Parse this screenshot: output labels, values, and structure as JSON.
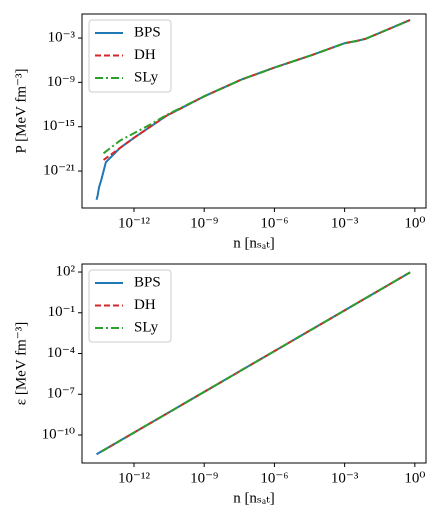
{
  "chart_data": [
    {
      "type": "line",
      "xlabel": "n [nₛₐₜ]",
      "ylabel": "P [MeV fm⁻³]",
      "xscale": "log",
      "yscale": "log",
      "legend": "upper left",
      "xlim": [
        6e-15,
        3
      ],
      "ylim": [
        1e-26,
        1.8
      ],
      "xticks": [
        {
          "value": 1e-12,
          "label": "10⁻¹²"
        },
        {
          "value": 1e-09,
          "label": "10⁻⁹"
        },
        {
          "value": 1e-06,
          "label": "10⁻⁶"
        },
        {
          "value": 0.001,
          "label": "10⁻³"
        },
        {
          "value": 1,
          "label": "10⁰"
        }
      ],
      "yticks": [
        {
          "value": 1e-21,
          "label": "10⁻²¹"
        },
        {
          "value": 1e-15,
          "label": "10⁻¹⁵"
        },
        {
          "value": 1e-09,
          "label": "10⁻⁹"
        },
        {
          "value": 0.001,
          "label": "10⁻³"
        }
      ],
      "series": [
        {
          "name": "BPS",
          "color": "#1f77b4",
          "linestyle": "solid",
          "x": [
            2.5e-14,
            2.8e-14,
            3.2e-14,
            4e-14,
            6.3e-14,
            2.5e-13,
            1e-12,
            2.5e-11,
            1e-09,
            4e-08,
            1e-06,
            4e-05,
            0.001,
            0.0032,
            0.0079,
            0.089,
            0.63
          ],
          "values": [
            1.3e-25,
            5e-25,
            6.3e-24,
            6.3e-23,
            1.6e-20,
            1.3e-18,
            3.2e-17,
            3.2e-14,
            1.3e-11,
            2.5e-09,
            1e-07,
            5e-06,
            0.0002,
            0.0004,
            0.00079,
            0.02,
            0.28
          ]
        },
        {
          "name": "DH",
          "color": "#d62728",
          "linestyle": "dashed",
          "x": [
            5e-14,
            2.5e-13,
            1e-12,
            2.5e-11,
            1e-09,
            4e-08,
            1e-06,
            4e-05,
            0.001,
            0.0032,
            0.0079,
            0.089,
            0.63
          ],
          "values": [
            3.2e-20,
            1.3e-18,
            3.2e-17,
            3.2e-14,
            1.3e-11,
            2.5e-09,
            1e-07,
            5e-06,
            0.0002,
            0.0004,
            0.00079,
            0.02,
            0.28
          ]
        },
        {
          "name": "SLy",
          "color": "#2ca02c",
          "linestyle": "dashdot",
          "x": [
            5e-14,
            2.5e-13,
            5e-12,
            2.5e-11,
            1e-09,
            4e-08,
            1e-06,
            4e-05,
            0.001,
            0.0032,
            0.0079,
            0.089,
            0.63
          ],
          "values": [
            2.5e-19,
            1.3e-17,
            2e-15,
            4e-14,
            1.3e-11,
            2.5e-09,
            1e-07,
            5e-06,
            0.0002,
            0.0004,
            0.00079,
            0.02,
            0.28
          ]
        }
      ]
    },
    {
      "type": "line",
      "xlabel": "n [nₛₐₜ]",
      "ylabel": "ε [MeV fm⁻³]",
      "xscale": "log",
      "yscale": "log",
      "legend": "upper left",
      "xlim": [
        6e-15,
        3
      ],
      "ylim": [
        8.7e-13,
        390
      ],
      "xticks": [
        {
          "value": 1e-12,
          "label": "10⁻¹²"
        },
        {
          "value": 1e-09,
          "label": "10⁻⁹"
        },
        {
          "value": 1e-06,
          "label": "10⁻⁶"
        },
        {
          "value": 0.001,
          "label": "10⁻³"
        },
        {
          "value": 1,
          "label": "10⁰"
        }
      ],
      "yticks": [
        {
          "value": 1e-10,
          "label": "10⁻¹⁰"
        },
        {
          "value": 1e-07,
          "label": "10⁻⁷"
        },
        {
          "value": 0.0001,
          "label": "10⁻⁴"
        },
        {
          "value": 0.1,
          "label": "10⁻¹"
        },
        {
          "value": 100,
          "label": "10²"
        }
      ],
      "series": [
        {
          "name": "BPS",
          "color": "#1f77b4",
          "linestyle": "solid",
          "x": [
            2.5e-14,
            1e-12,
            1e-09,
            1e-06,
            0.001,
            0.63
          ],
          "values": [
            3.8e-12,
            1.5e-10,
            1.5e-07,
            0.00015,
            0.15,
            95
          ]
        },
        {
          "name": "DH",
          "color": "#d62728",
          "linestyle": "dashed",
          "x": [
            4e-14,
            1e-12,
            1e-09,
            1e-06,
            0.001,
            0.63
          ],
          "values": [
            6e-12,
            1.5e-10,
            1.5e-07,
            0.00015,
            0.15,
            95
          ]
        },
        {
          "name": "SLy",
          "color": "#2ca02c",
          "linestyle": "dashdot",
          "x": [
            4e-14,
            1e-12,
            1e-09,
            1e-06,
            0.001,
            0.63
          ],
          "values": [
            6e-12,
            1.5e-10,
            1.5e-07,
            0.00015,
            0.15,
            95
          ]
        }
      ]
    }
  ]
}
